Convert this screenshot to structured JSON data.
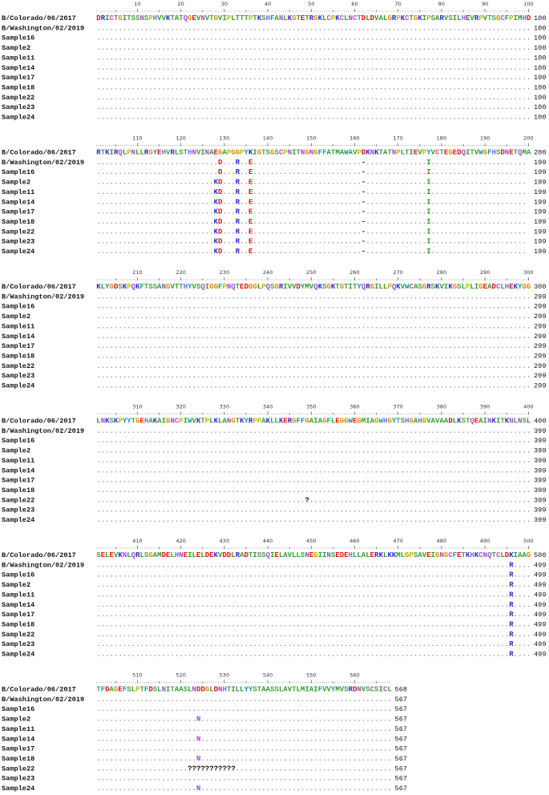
{
  "residue_colors": {
    "D": "#e01010",
    "E": "#e01010",
    "K": "#2a2ad0",
    "R": "#2a2ad0",
    "H": "#7070f0",
    "G": "#e08a00",
    "P": "#b8b800",
    "A": "#2d9a2d",
    "V": "#2d9a2d",
    "L": "#2d9a2d",
    "I": "#2d9a2d",
    "M": "#2d9a2d",
    "F": "#109a9a",
    "W": "#109a9a",
    "Y": "#109a9a",
    "C": "#c050c0",
    "S": "#45a045",
    "T": "#45a045",
    "N": "#9a50c0",
    "Q": "#9a50c0",
    ".": "#9090a0",
    "-": "#222222",
    "?": "#111111"
  },
  "blocks": [
    {
      "ruler": [
        10,
        20,
        30,
        40,
        50,
        60,
        70,
        80,
        90,
        100
      ],
      "rows": [
        {
          "name": "B/Colorado/06/2017",
          "seq": "DRICTGITSSNSPHVVKTATQGEVNVTGVIPLTTTPTKSHFANLKGTETRGKLCPKCLNCTDLDVALGRPKCTGKIPSARVSILHEVRPVTSGCFPIMHD",
          "end": 100
        },
        {
          "name": "B/Washington/02/2019",
          "seq": "....................................................................................................",
          "end": 100
        },
        {
          "name": "Sample16",
          "seq": "....................................................................................................",
          "end": 100
        },
        {
          "name": "Sample2",
          "seq": "....................................................................................................",
          "end": 100
        },
        {
          "name": "Sample11",
          "seq": "....................................................................................................",
          "end": 100
        },
        {
          "name": "Sample14",
          "seq": "....................................................................................................",
          "end": 100
        },
        {
          "name": "Sample17",
          "seq": "....................................................................................................",
          "end": 100
        },
        {
          "name": "Sample18",
          "seq": "....................................................................................................",
          "end": 100
        },
        {
          "name": "Sample22",
          "seq": "....................................................................................................",
          "end": 100
        },
        {
          "name": "Sample23",
          "seq": "....................................................................................................",
          "end": 100
        },
        {
          "name": "Sample24",
          "seq": "....................................................................................................",
          "end": 100
        }
      ]
    },
    {
      "ruler": [
        110,
        120,
        130,
        140,
        150,
        160,
        170,
        180,
        190,
        200
      ],
      "rows": [
        {
          "name": "B/Colorado/06/2017",
          "seq": "RTKIRQLPNLLRGYEHVRLSTHNVINAEGAPGGPYKIGTSGSCPNITNGNGFFATMAWAVPDKNKTATNPLTIEVPYVCTEGEDQITVWGFHSDNETQMA",
          "end": 200
        },
        {
          "name": "B/Washington/02/2019",
          "seq": "............................D...R..E.........................-..............I......................",
          "end": 199
        },
        {
          "name": "Sample16",
          "seq": "............................D...R..E.........................-..............I......................",
          "end": 199
        },
        {
          "name": "Sample2",
          "seq": "...........................KD...R..E.........................-..............I......................",
          "end": 199
        },
        {
          "name": "Sample11",
          "seq": "...........................KD...R..E.........................-..............I......................",
          "end": 199
        },
        {
          "name": "Sample14",
          "seq": "...........................KD...R..E.........................-..............I......................",
          "end": 199
        },
        {
          "name": "Sample17",
          "seq": "...........................KD...R..E.........................-..............I......................",
          "end": 199
        },
        {
          "name": "Sample18",
          "seq": "...........................KD...R..E.........................-..............I......................",
          "end": 199
        },
        {
          "name": "Sample22",
          "seq": "...........................KD...R..E.........................-..............I......................",
          "end": 199
        },
        {
          "name": "Sample23",
          "seq": "...........................KD...R..E.........................-..............I......................",
          "end": 199
        },
        {
          "name": "Sample24",
          "seq": "...........................KD...R..E.........................-..............I......................",
          "end": 199
        }
      ]
    },
    {
      "ruler": [
        210,
        220,
        230,
        240,
        250,
        260,
        270,
        280,
        290,
        300
      ],
      "rows": [
        {
          "name": "B/Colorado/06/2017",
          "seq": "KLYGDSKPQKFTSSANGVTTHYVSQIGGFPNQTEDGGLPQSGRIVVDYMVQKSGKTGTITYQRGILLPQKVWCASGRSKVIKGSLPLIGEADCLHEKYGG",
          "end": 300
        },
        {
          "name": "B/Washington/02/2019",
          "seq": "....................................................................................................",
          "end": 299
        },
        {
          "name": "Sample16",
          "seq": "....................................................................................................",
          "end": 299
        },
        {
          "name": "Sample2",
          "seq": "....................................................................................................",
          "end": 299
        },
        {
          "name": "Sample11",
          "seq": "....................................................................................................",
          "end": 299
        },
        {
          "name": "Sample14",
          "seq": "....................................................................................................",
          "end": 299
        },
        {
          "name": "Sample17",
          "seq": "....................................................................................................",
          "end": 299
        },
        {
          "name": "Sample18",
          "seq": "....................................................................................................",
          "end": 299
        },
        {
          "name": "Sample22",
          "seq": "....................................................................................................",
          "end": 299
        },
        {
          "name": "Sample23",
          "seq": "....................................................................................................",
          "end": 299
        },
        {
          "name": "Sample24",
          "seq": "....................................................................................................",
          "end": 299
        }
      ]
    },
    {
      "ruler": [
        310,
        320,
        330,
        340,
        350,
        360,
        370,
        380,
        390,
        400
      ],
      "rows": [
        {
          "name": "B/Colorado/06/2017",
          "seq": "LNKSKPYYTGEHAKAIGNCPIWVKTPLKLANGTKYRPPAKLLKERGFFGAIAGFLEGGWEGMIAGWHGYTSHGAHGVAVAADLKSTQEAINKITKNLNSL",
          "end": 400
        },
        {
          "name": "B/Washington/02/2019",
          "seq": "....................................................................................................",
          "end": 399
        },
        {
          "name": "Sample16",
          "seq": "....................................................................................................",
          "end": 399
        },
        {
          "name": "Sample2",
          "seq": "....................................................................................................",
          "end": 399
        },
        {
          "name": "Sample11",
          "seq": "....................................................................................................",
          "end": 399
        },
        {
          "name": "Sample14",
          "seq": "....................................................................................................",
          "end": 399
        },
        {
          "name": "Sample17",
          "seq": "....................................................................................................",
          "end": 399
        },
        {
          "name": "Sample18",
          "seq": "....................................................................................................",
          "end": 399
        },
        {
          "name": "Sample22",
          "seq": "................................................?...................................................",
          "end": 399
        },
        {
          "name": "Sample23",
          "seq": "....................................................................................................",
          "end": 399
        },
        {
          "name": "Sample24",
          "seq": "....................................................................................................",
          "end": 399
        }
      ]
    },
    {
      "ruler": [
        410,
        420,
        430,
        440,
        450,
        460,
        470,
        480,
        490,
        500
      ],
      "rows": [
        {
          "name": "B/Colorado/06/2017",
          "seq": "SELEVKNLQRLSGAMDELHNEILELDEKVDDLRADTISSQIELAVLLSNEGIINSEDEHLLALERKLKKMLGPSAVEIGNGCFETKHKCNQTCLDKIAAG",
          "end": 500
        },
        {
          "name": "B/Washington/02/2019",
          "seq": "...............................................................................................R....",
          "end": 499
        },
        {
          "name": "Sample16",
          "seq": "...............................................................................................R....",
          "end": 499
        },
        {
          "name": "Sample2",
          "seq": "...............................................................................................R....",
          "end": 499
        },
        {
          "name": "Sample11",
          "seq": "...............................................................................................R....",
          "end": 499
        },
        {
          "name": "Sample14",
          "seq": "...............................................................................................R....",
          "end": 499
        },
        {
          "name": "Sample17",
          "seq": "...............................................................................................R....",
          "end": 499
        },
        {
          "name": "Sample18",
          "seq": "...............................................................................................R....",
          "end": 499
        },
        {
          "name": "Sample22",
          "seq": "...............................................................................................R....",
          "end": 499
        },
        {
          "name": "Sample23",
          "seq": "...............................................................................................R....",
          "end": 499
        },
        {
          "name": "Sample24",
          "seq": "...............................................................................................R....",
          "end": 499
        }
      ]
    },
    {
      "ruler": [
        510,
        520,
        530,
        540,
        550,
        560
      ],
      "rows": [
        {
          "name": "B/Colorado/06/2017",
          "seq": "TFDAGEFSLPTFDSLNITAASLNDDGLDNHTILLYYSTAASSLAVTLMIAIFVVYMVSRDNVSCSICL",
          "end": 568
        },
        {
          "name": "B/Washington/02/2019",
          "seq": "....................................................................",
          "end": 567
        },
        {
          "name": "Sample16",
          "seq": "....................................................................",
          "end": 567
        },
        {
          "name": "Sample2",
          "seq": ".......................N............................................",
          "end": 567
        },
        {
          "name": "Sample11",
          "seq": "....................................................................",
          "end": 567
        },
        {
          "name": "Sample14",
          "seq": ".......................N............................................",
          "end": 567
        },
        {
          "name": "Sample17",
          "seq": "....................................................................",
          "end": 567
        },
        {
          "name": "Sample18",
          "seq": ".......................N............................................",
          "end": 567
        },
        {
          "name": "Sample22",
          "seq": ".....................???????????....................................",
          "end": 567
        },
        {
          "name": "Sample23",
          "seq": "....................................................................",
          "end": 567
        },
        {
          "name": "Sample24",
          "seq": ".......................N............................................",
          "end": 567
        }
      ]
    }
  ]
}
